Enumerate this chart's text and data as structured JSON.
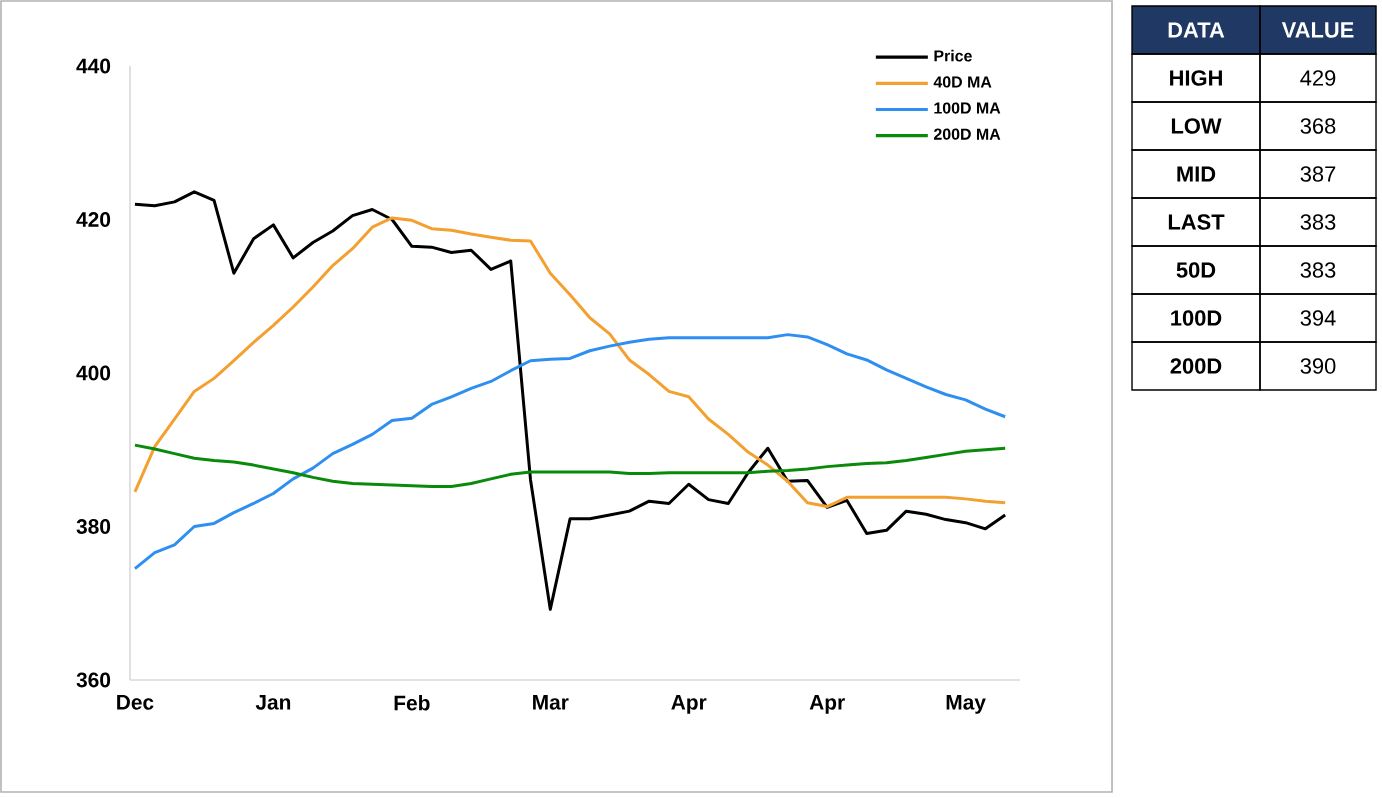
{
  "chart_data": [
    {
      "type": "line",
      "ylim": [
        360,
        440
      ],
      "yticks": [
        360,
        380,
        400,
        420,
        440
      ],
      "categories": [
        "Dec",
        null,
        null,
        null,
        null,
        null,
        null,
        "Jan",
        null,
        null,
        null,
        null,
        null,
        null,
        "Feb",
        null,
        null,
        null,
        null,
        null,
        null,
        "Mar",
        null,
        null,
        null,
        null,
        null,
        null,
        "Apr",
        null,
        null,
        null,
        null,
        null,
        null,
        "Apr",
        null,
        null,
        null,
        null,
        null,
        null,
        "May",
        null,
        null
      ],
      "legend": "top right",
      "series": [
        {
          "name": "Price",
          "color": "#000000",
          "values": [
            422,
            421.8,
            422.3,
            423.6,
            422.5,
            413,
            417.5,
            419.3,
            415,
            417,
            418.5,
            420.5,
            421.3,
            420,
            416.5,
            416.4,
            415.7,
            416,
            413.5,
            414.6,
            386.1,
            369.2,
            381,
            381,
            381.5,
            382,
            383.3,
            383,
            385.5,
            383.5,
            383,
            387,
            390.2,
            385.9,
            386,
            382.5,
            383.4,
            379.1,
            379.5,
            382,
            381.6,
            380.9,
            380.5,
            379.7,
            381.5
          ]
        },
        {
          "name": "40D MA",
          "color": "#f4a030",
          "values": [
            384.5,
            390.4,
            394.0,
            397.6,
            399.3,
            401.6,
            404.0,
            406.2,
            408.6,
            411.2,
            414.0,
            416.2,
            419.0,
            420.2,
            419.9,
            418.8,
            418.6,
            418.1,
            417.7,
            417.3,
            417.2,
            413.0,
            410.2,
            407.2,
            405.1,
            401.7,
            399.8,
            397.6,
            396.9,
            394.0,
            392.0,
            389.7,
            388.0,
            385.9,
            383.1,
            382.6,
            383.8,
            383.8,
            383.8,
            383.8,
            383.8,
            383.8,
            383.6,
            383.3,
            383.1
          ]
        },
        {
          "name": "100D MA",
          "color": "#2f8ff0",
          "values": [
            374.5,
            376.6,
            377.6,
            380.0,
            380.4,
            381.8,
            383.0,
            384.3,
            386.2,
            387.6,
            389.5,
            390.7,
            392.0,
            393.8,
            394.1,
            395.9,
            396.9,
            398.0,
            398.9,
            400.3,
            401.6,
            401.8,
            401.9,
            402.9,
            403.5,
            404.0,
            404.4,
            404.6,
            404.6,
            404.6,
            404.6,
            404.6,
            404.6,
            405.0,
            404.7,
            403.7,
            402.5,
            401.7,
            400.4,
            399.3,
            398.2,
            397.2,
            396.5,
            395.3,
            394.3
          ]
        },
        {
          "name": "200D MA",
          "color": "#0a8a0a",
          "values": [
            390.6,
            390.1,
            389.5,
            388.9,
            388.6,
            388.4,
            388.0,
            387.5,
            387.0,
            386.4,
            385.9,
            385.6,
            385.5,
            385.4,
            385.3,
            385.2,
            385.2,
            385.6,
            386.2,
            386.8,
            387.1,
            387.1,
            387.1,
            387.1,
            387.1,
            386.9,
            386.9,
            387.0,
            387.0,
            387.0,
            387.0,
            387.0,
            387.2,
            387.3,
            387.5,
            387.8,
            388.0,
            388.2,
            388.3,
            388.6,
            389.0,
            389.4,
            389.8,
            390.0,
            390.2
          ]
        }
      ]
    },
    {
      "type": "other",
      "annotations": [
        "DATA",
        "VALUE",
        "HIGH",
        "429",
        "LOW",
        "368",
        "MID",
        "387",
        "LAST",
        "383",
        "50D",
        "383",
        "100D",
        "394",
        "200D",
        "390"
      ]
    }
  ]
}
